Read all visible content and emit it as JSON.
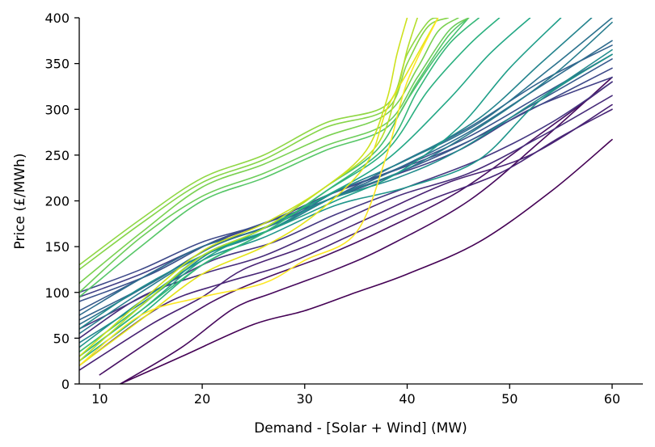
{
  "chart_data": {
    "type": "line",
    "title": "",
    "xlabel": "Demand - [Solar + Wind] (MW)",
    "ylabel": "Price (£/MWh)",
    "xlim": [
      8,
      63
    ],
    "ylim": [
      0,
      400
    ],
    "xticks": [
      10,
      20,
      30,
      40,
      50,
      60
    ],
    "yticks": [
      0,
      50,
      100,
      150,
      200,
      250,
      300,
      350,
      400
    ],
    "grid": false,
    "legend": "none",
    "colormap": "viridis",
    "series": [
      {
        "color": "#440154",
        "x": [
          12,
          18,
          25,
          30,
          35,
          40,
          47,
          54,
          60
        ],
        "y": [
          0,
          30,
          65,
          80,
          100,
          120,
          155,
          210,
          267
        ]
      },
      {
        "color": "#46085c",
        "x": [
          12,
          18,
          23,
          27,
          33,
          38,
          46,
          53,
          60
        ],
        "y": [
          0,
          40,
          82,
          100,
          125,
          150,
          200,
          265,
          335
        ]
      },
      {
        "color": "#471063",
        "x": [
          10,
          16,
          21,
          26,
          32,
          38,
          45,
          52,
          60
        ],
        "y": [
          10,
          55,
          90,
          115,
          140,
          170,
          210,
          265,
          330
        ]
      },
      {
        "color": "#482173",
        "x": [
          8,
          15,
          20,
          24,
          30,
          37,
          44,
          52,
          60
        ],
        "y": [
          15,
          65,
          95,
          125,
          150,
          185,
          220,
          250,
          305
        ]
      },
      {
        "color": "#482576",
        "x": [
          8,
          16,
          22,
          28,
          35,
          42,
          49,
          55,
          60
        ],
        "y": [
          20,
          85,
          110,
          130,
          165,
          200,
          230,
          270,
          300
        ]
      },
      {
        "color": "#472c7a",
        "x": [
          8,
          14,
          20,
          26,
          32,
          39,
          46,
          53,
          60
        ],
        "y": [
          50,
          95,
          120,
          140,
          170,
          205,
          230,
          270,
          315
        ]
      },
      {
        "color": "#453781",
        "x": [
          8,
          15,
          21,
          27,
          33,
          40,
          47,
          54,
          60
        ],
        "y": [
          60,
          100,
          135,
          155,
          185,
          215,
          245,
          285,
          330
        ]
      },
      {
        "color": "#424086",
        "x": [
          8,
          14,
          20,
          26,
          32,
          38,
          45,
          52,
          60
        ],
        "y": [
          95,
          120,
          150,
          175,
          200,
          225,
          255,
          300,
          335
        ]
      },
      {
        "color": "#3e4989",
        "x": [
          8,
          14,
          20,
          26,
          32,
          38,
          45,
          53,
          60
        ],
        "y": [
          100,
          125,
          155,
          175,
          205,
          230,
          260,
          305,
          345
        ]
      },
      {
        "color": "#3b528b",
        "x": [
          8,
          15,
          21,
          27,
          33,
          39,
          46,
          53,
          60
        ],
        "y": [
          90,
          120,
          155,
          180,
          210,
          235,
          270,
          315,
          360
        ]
      },
      {
        "color": "#375a8c",
        "x": [
          8,
          14,
          20,
          26,
          32,
          39,
          46,
          53,
          60
        ],
        "y": [
          80,
          115,
          150,
          170,
          200,
          230,
          265,
          310,
          355
        ]
      },
      {
        "color": "#33638d",
        "x": [
          8,
          15,
          21,
          27,
          33,
          39,
          46,
          53,
          60
        ],
        "y": [
          70,
          110,
          150,
          175,
          205,
          240,
          280,
          330,
          370
        ]
      },
      {
        "color": "#2f6c8e",
        "x": [
          8,
          14,
          20,
          26,
          32,
          39,
          46,
          53,
          60
        ],
        "y": [
          75,
          115,
          150,
          170,
          200,
          235,
          275,
          325,
          375
        ]
      },
      {
        "color": "#2c728e",
        "x": [
          8,
          15,
          21,
          27,
          33,
          40,
          47,
          54,
          60
        ],
        "y": [
          65,
          110,
          150,
          175,
          210,
          245,
          285,
          345,
          400
        ]
      },
      {
        "color": "#287c8e",
        "x": [
          8,
          14,
          20,
          27,
          33,
          40,
          47,
          54,
          60
        ],
        "y": [
          55,
          100,
          140,
          170,
          205,
          235,
          280,
          335,
          395
        ]
      },
      {
        "color": "#25848e",
        "x": [
          8,
          15,
          21,
          27,
          33,
          40,
          47,
          53,
          58
        ],
        "y": [
          45,
          95,
          145,
          170,
          210,
          245,
          290,
          350,
          400
        ]
      },
      {
        "color": "#228c8d",
        "x": [
          8,
          14,
          20,
          26,
          32,
          39,
          45,
          52,
          60
        ],
        "y": [
          60,
          105,
          140,
          165,
          200,
          225,
          255,
          305,
          365
        ]
      },
      {
        "color": "#1f958b",
        "x": [
          8,
          14,
          20,
          26,
          33,
          40,
          47,
          53,
          60
        ],
        "y": [
          40,
          90,
          135,
          160,
          195,
          215,
          245,
          310,
          360
        ]
      },
      {
        "color": "#1f9e89",
        "x": [
          8,
          14,
          20,
          27,
          33,
          39,
          45,
          50,
          55
        ],
        "y": [
          35,
          85,
          140,
          170,
          200,
          230,
          280,
          345,
          400
        ]
      },
      {
        "color": "#22a785",
        "x": [
          8,
          14,
          20,
          26,
          32,
          38,
          44,
          48,
          52
        ],
        "y": [
          30,
          80,
          135,
          170,
          205,
          245,
          310,
          360,
          400
        ]
      },
      {
        "color": "#2ab07f",
        "x": [
          8,
          14,
          20,
          26,
          32,
          38,
          42,
          46,
          49
        ],
        "y": [
          25,
          75,
          130,
          165,
          210,
          255,
          320,
          370,
          400
        ]
      },
      {
        "color": "#35b779",
        "x": [
          8,
          14,
          20,
          26,
          32,
          38,
          41,
          44,
          47
        ],
        "y": [
          30,
          80,
          130,
          165,
          210,
          260,
          320,
          370,
          400
        ]
      },
      {
        "color": "#44bf70",
        "x": [
          8,
          14,
          20,
          26,
          32,
          37,
          40,
          43,
          46
        ],
        "y": [
          35,
          85,
          140,
          170,
          215,
          255,
          310,
          360,
          400
        ]
      },
      {
        "color": "#56c667",
        "x": [
          8,
          14,
          20,
          26,
          32,
          38,
          41,
          44,
          46
        ],
        "y": [
          95,
          150,
          200,
          225,
          255,
          280,
          330,
          380,
          400
        ]
      },
      {
        "color": "#6ccd5a",
        "x": [
          8,
          14,
          20,
          26,
          32,
          38,
          41,
          44,
          46
        ],
        "y": [
          100,
          160,
          205,
          230,
          260,
          285,
          335,
          385,
          400
        ]
      },
      {
        "color": "#7ad151",
        "x": [
          8,
          14,
          20,
          26,
          32,
          38,
          41,
          43,
          45
        ],
        "y": [
          110,
          165,
          215,
          240,
          270,
          295,
          345,
          385,
          400
        ]
      },
      {
        "color": "#86d549",
        "x": [
          8,
          14,
          20,
          26,
          32,
          38,
          40,
          42,
          44
        ],
        "y": [
          125,
          175,
          220,
          245,
          280,
          300,
          350,
          390,
          400
        ]
      },
      {
        "color": "#8fd744",
        "x": [
          8,
          14,
          20,
          26,
          32,
          38,
          40,
          42,
          43
        ],
        "y": [
          130,
          180,
          225,
          250,
          285,
          305,
          360,
          395,
          400
        ]
      },
      {
        "color": "#b5de2b",
        "x": [
          8,
          14,
          20,
          26,
          32,
          37,
          39,
          40,
          41
        ],
        "y": [
          25,
          85,
          140,
          170,
          215,
          260,
          320,
          365,
          400
        ]
      },
      {
        "color": "#cde11d",
        "x": [
          8,
          14,
          20,
          26,
          32,
          36,
          38,
          39,
          40
        ],
        "y": [
          30,
          90,
          145,
          175,
          215,
          255,
          310,
          360,
          400
        ]
      },
      {
        "color": "#e5e419",
        "x": [
          8,
          14,
          20,
          26,
          31,
          36,
          38,
          40,
          43
        ],
        "y": [
          20,
          70,
          120,
          150,
          185,
          240,
          300,
          340,
          400
        ]
      },
      {
        "color": "#fde725",
        "x": [
          8,
          14,
          20,
          26,
          30,
          35,
          38,
          40,
          43
        ],
        "y": [
          20,
          75,
          95,
          110,
          135,
          165,
          250,
          330,
          400
        ]
      }
    ]
  }
}
